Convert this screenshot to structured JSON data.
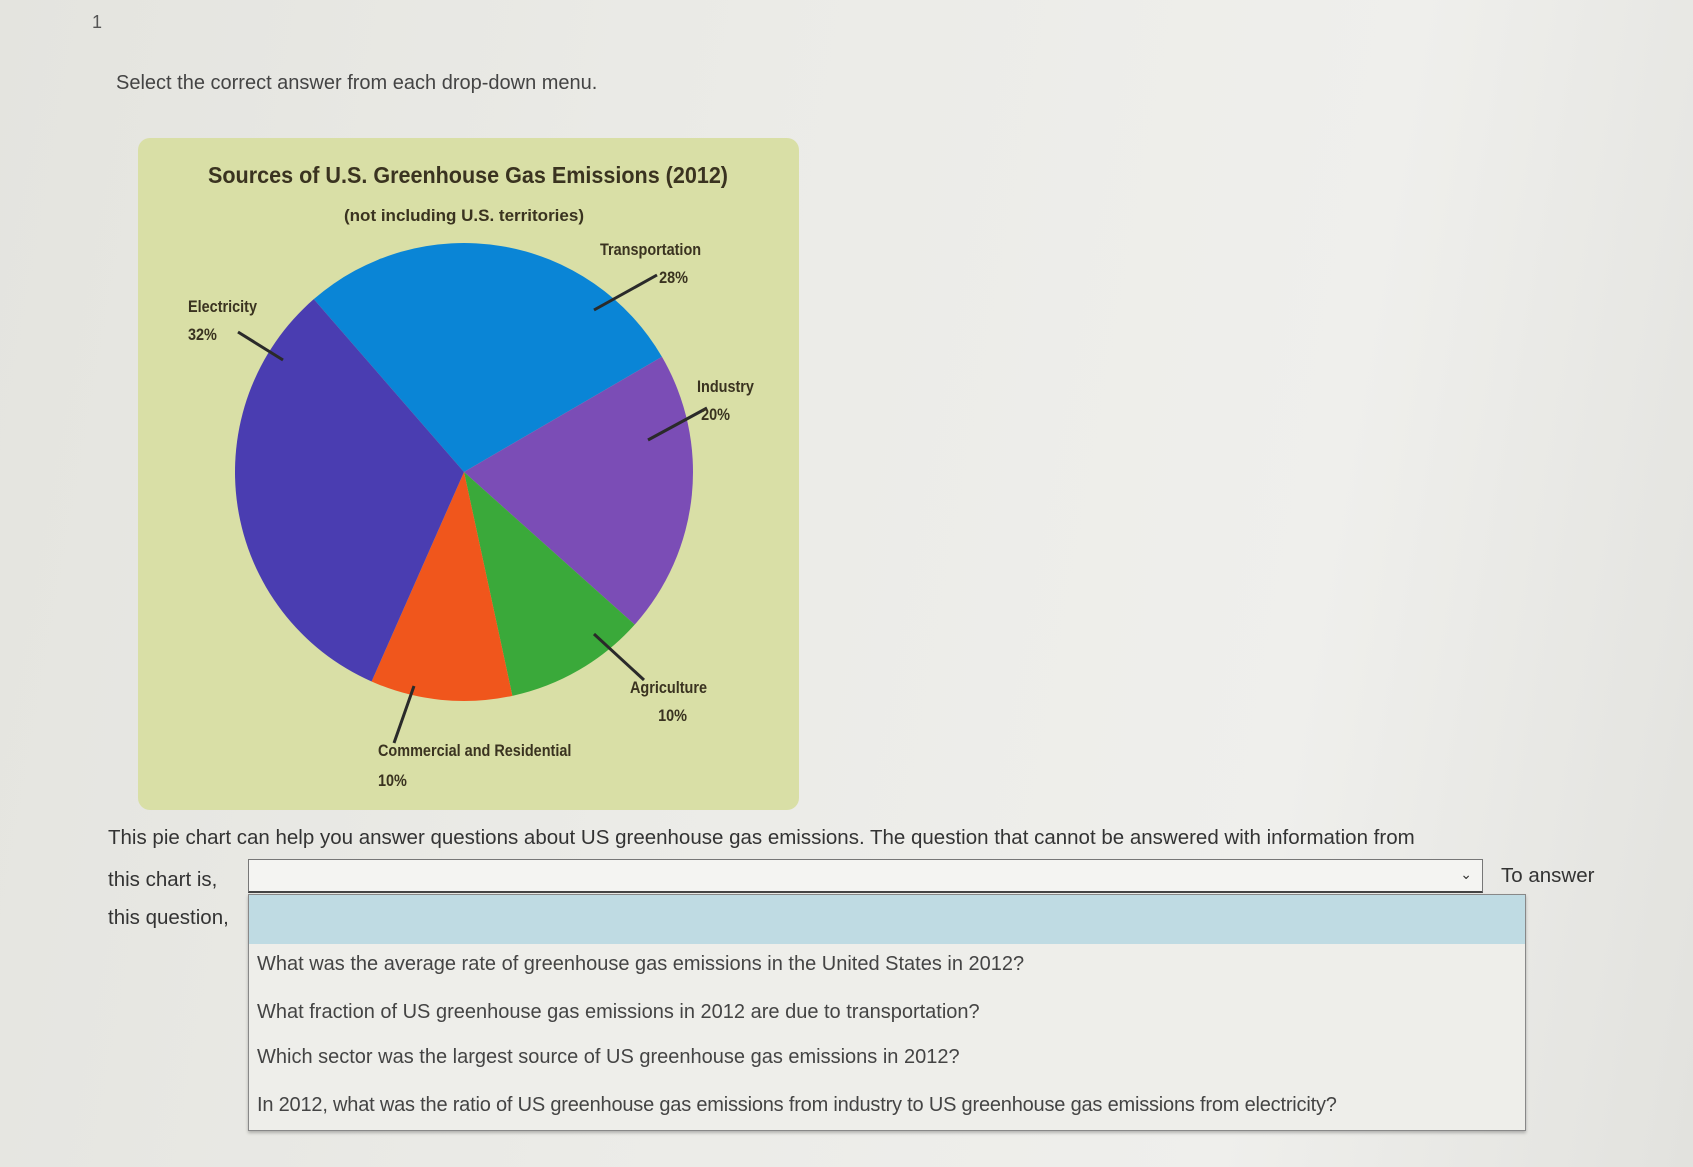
{
  "question_number": "1",
  "instruction": "Select the correct answer from each drop-down menu.",
  "chart_data": {
    "type": "pie",
    "title": "Sources of U.S. Greenhouse Gas Emissions (2012)",
    "subtitle": "(not including U.S. territories)",
    "slices": [
      {
        "label": "Transportation",
        "value": 28,
        "value_label": "28%",
        "color": "#0a85d6"
      },
      {
        "label": "Industry",
        "value": 20,
        "value_label": "20%",
        "color": "#7b4db6"
      },
      {
        "label": "Agriculture",
        "value": 10,
        "value_label": "10%",
        "color": "#3aa93a"
      },
      {
        "label": "Commercial and Residential",
        "value": 10,
        "value_label": "10%",
        "color": "#f0561c"
      },
      {
        "label": "Electricity",
        "value": 32,
        "value_label": "32%",
        "color": "#4a3db1"
      }
    ],
    "background_color": "#d9dfa6"
  },
  "paragraph": "This pie chart can help you answer questions about US greenhouse gas emissions. The question that cannot be answered with information from",
  "sentence_part_1": "this chart is,",
  "sentence_part_2": "To answer",
  "sentence_part_3": "this question,",
  "dropdown": {
    "selected": "",
    "options": [
      "",
      "What was the average rate of greenhouse gas emissions in the United States in 2012?",
      "What fraction of US greenhouse gas emissions in 2012 are due to transportation?",
      "Which sector was the largest source of US greenhouse gas emissions in 2012?",
      "In 2012, what was the ratio of US greenhouse gas emissions from industry to US greenhouse gas emissions from electricity?"
    ],
    "highlight_color": "#bfdbe3"
  }
}
